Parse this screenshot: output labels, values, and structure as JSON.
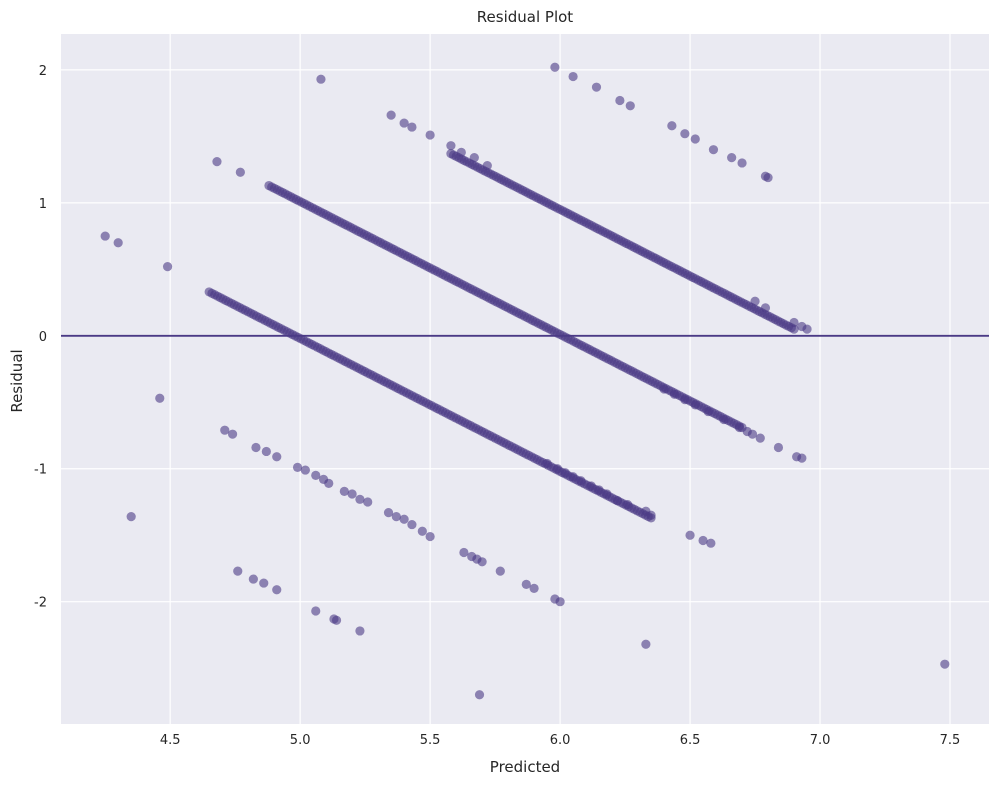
{
  "chart_data": {
    "type": "scatter",
    "title": "Residual Plot",
    "xlabel": "Predicted",
    "ylabel": "Residual",
    "xlim": [
      4.08,
      7.65
    ],
    "ylim": [
      -2.92,
      2.27
    ],
    "xticks": [
      4.5,
      5.0,
      5.5,
      6.0,
      6.5,
      7.0,
      7.5
    ],
    "xtick_labels": [
      "4.5",
      "5.0",
      "5.5",
      "6.0",
      "6.5",
      "7.0",
      "7.5"
    ],
    "yticks": [
      -2,
      -1,
      0,
      1,
      2
    ],
    "ytick_labels": [
      "-2",
      "-1",
      "0",
      "1",
      "2"
    ],
    "grid": true,
    "background_color": "#EAEAF2",
    "grid_color": "#FFFFFF",
    "marker_color": "#4B3A86",
    "marker_opacity": 0.6,
    "reference_line": {
      "y": 0,
      "color": "#4B3A86"
    },
    "points": [
      [
        4.25,
        0.75
      ],
      [
        4.3,
        0.7
      ],
      [
        4.49,
        0.52
      ],
      [
        4.46,
        -0.47
      ],
      [
        4.35,
        -1.36
      ],
      [
        4.68,
        1.31
      ],
      [
        4.77,
        1.23
      ],
      [
        5.08,
        1.93
      ],
      [
        5.35,
        1.66
      ],
      [
        5.4,
        1.6
      ],
      [
        5.43,
        1.57
      ],
      [
        5.5,
        1.51
      ],
      [
        5.58,
        1.43
      ],
      [
        5.62,
        1.38
      ],
      [
        5.67,
        1.34
      ],
      [
        5.72,
        1.28
      ],
      [
        5.98,
        2.02
      ],
      [
        6.05,
        1.95
      ],
      [
        6.14,
        1.87
      ],
      [
        6.23,
        1.77
      ],
      [
        6.27,
        1.73
      ],
      [
        6.43,
        1.58
      ],
      [
        6.48,
        1.52
      ],
      [
        6.52,
        1.48
      ],
      [
        6.59,
        1.4
      ],
      [
        6.66,
        1.34
      ],
      [
        6.7,
        1.3
      ],
      [
        6.79,
        1.2
      ],
      [
        6.8,
        1.19
      ],
      [
        6.75,
        0.26
      ],
      [
        6.79,
        0.21
      ],
      [
        6.9,
        0.1
      ],
      [
        6.93,
        0.07
      ],
      [
        6.95,
        0.05
      ],
      [
        4.71,
        -0.71
      ],
      [
        4.74,
        -0.74
      ],
      [
        4.83,
        -0.84
      ],
      [
        4.87,
        -0.87
      ],
      [
        4.91,
        -0.91
      ],
      [
        4.99,
        -0.99
      ],
      [
        5.02,
        -1.01
      ],
      [
        5.06,
        -1.05
      ],
      [
        5.09,
        -1.08
      ],
      [
        5.11,
        -1.11
      ],
      [
        5.17,
        -1.17
      ],
      [
        5.2,
        -1.19
      ],
      [
        5.23,
        -1.23
      ],
      [
        5.26,
        -1.25
      ],
      [
        5.34,
        -1.33
      ],
      [
        5.37,
        -1.36
      ],
      [
        5.4,
        -1.38
      ],
      [
        5.43,
        -1.42
      ],
      [
        5.47,
        -1.47
      ],
      [
        5.5,
        -1.51
      ],
      [
        5.63,
        -1.63
      ],
      [
        5.66,
        -1.66
      ],
      [
        5.68,
        -1.68
      ],
      [
        5.7,
        -1.7
      ],
      [
        5.77,
        -1.77
      ],
      [
        6.5,
        -1.5
      ],
      [
        6.55,
        -1.54
      ],
      [
        6.58,
        -1.56
      ],
      [
        6.26,
        -1.27
      ],
      [
        6.33,
        -1.32
      ],
      [
        6.35,
        -1.35
      ],
      [
        6.22,
        -1.24
      ],
      [
        6.18,
        -1.19
      ],
      [
        6.15,
        -1.16
      ],
      [
        6.12,
        -1.13
      ],
      [
        6.08,
        -1.09
      ],
      [
        6.05,
        -1.06
      ],
      [
        6.02,
        -1.03
      ],
      [
        5.99,
        -1.0
      ],
      [
        5.95,
        -0.96
      ],
      [
        4.76,
        -1.77
      ],
      [
        4.82,
        -1.83
      ],
      [
        4.86,
        -1.86
      ],
      [
        4.91,
        -1.91
      ],
      [
        5.06,
        -2.07
      ],
      [
        5.13,
        -2.13
      ],
      [
        5.14,
        -2.14
      ],
      [
        5.23,
        -2.22
      ],
      [
        5.87,
        -1.87
      ],
      [
        5.9,
        -1.9
      ],
      [
        5.98,
        -1.98
      ],
      [
        6.0,
        -2.0
      ],
      [
        5.69,
        -2.7
      ],
      [
        6.33,
        -2.32
      ],
      [
        7.48,
        -2.47
      ],
      [
        6.4,
        -0.4
      ],
      [
        6.44,
        -0.44
      ],
      [
        6.48,
        -0.48
      ],
      [
        6.52,
        -0.52
      ],
      [
        6.57,
        -0.57
      ],
      [
        6.63,
        -0.63
      ],
      [
        6.69,
        -0.69
      ],
      [
        6.74,
        -0.74
      ],
      [
        6.77,
        -0.77
      ],
      [
        6.84,
        -0.84
      ],
      [
        6.91,
        -0.91
      ],
      [
        6.93,
        -0.92
      ],
      [
        6.72,
        -0.72
      ]
    ],
    "series": [
      {
        "x_start": 4.65,
        "x_end": 6.35,
        "intercept": 4.98,
        "n": 160
      },
      {
        "x_start": 4.88,
        "x_end": 6.7,
        "intercept": 6.01,
        "n": 175
      },
      {
        "x_start": 5.58,
        "x_end": 6.9,
        "intercept": 6.95,
        "n": 130
      }
    ]
  }
}
